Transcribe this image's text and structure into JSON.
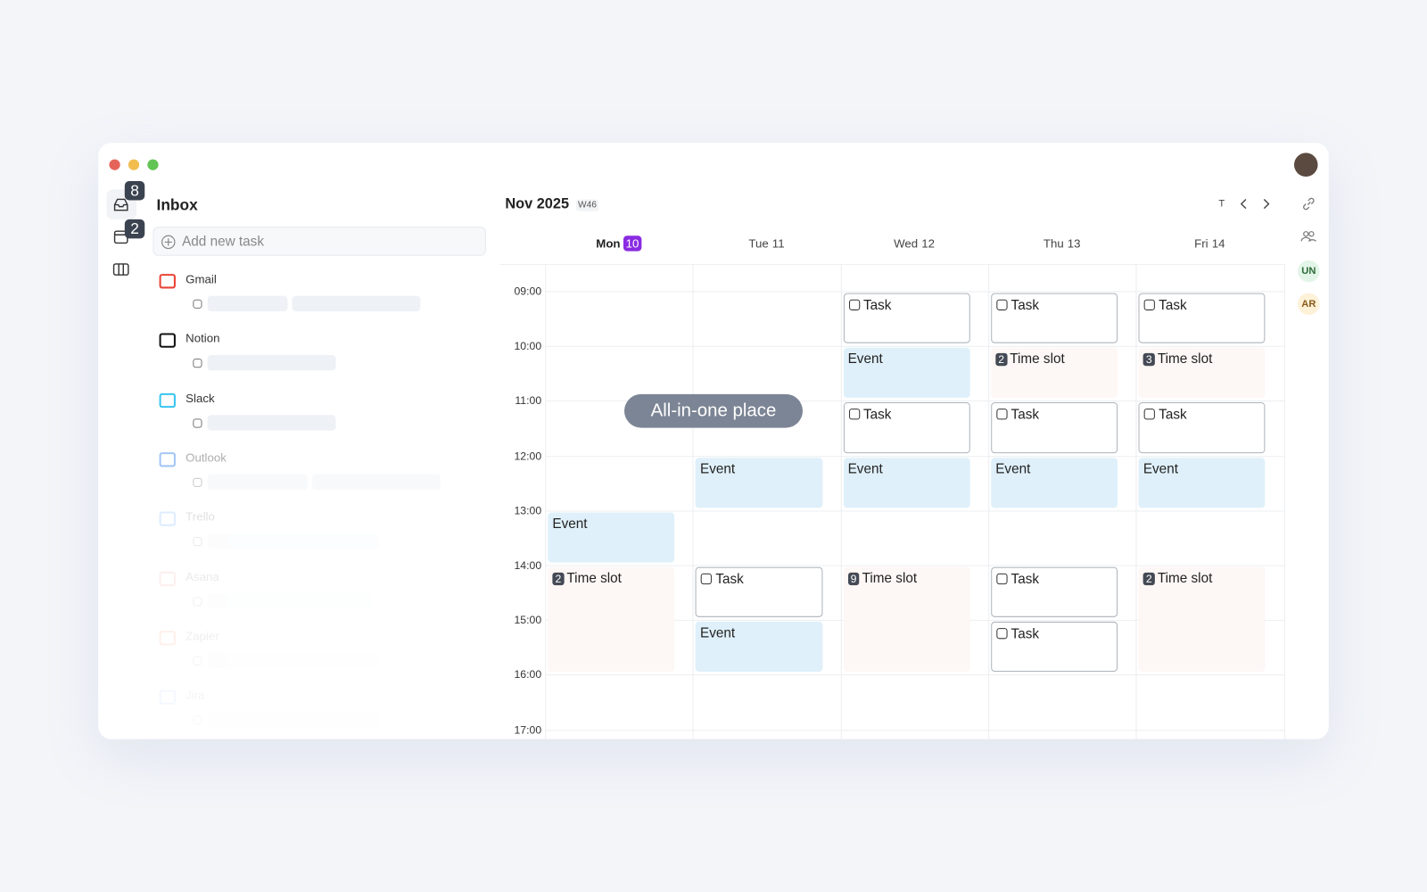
{
  "sidebar": {
    "badges": [
      "8",
      "2"
    ]
  },
  "inbox": {
    "title": "Inbox",
    "add_task": "Add new task",
    "sources": [
      "Gmail",
      "Notion",
      "Slack",
      "Outlook",
      "Trello",
      "Asana",
      "Zapier",
      "Jira"
    ]
  },
  "calendar": {
    "month": "Nov 2025",
    "week": "W46",
    "today": "T",
    "hours": [
      "09:00",
      "10:00",
      "11:00",
      "12:00",
      "13:00",
      "14:00",
      "15:00",
      "16:00",
      "17:00"
    ],
    "days": [
      {
        "name": "Mon",
        "date": "10",
        "items": [
          {
            "kind": "event",
            "label": "Event"
          },
          {
            "kind": "slot",
            "count": "2",
            "label": "Time slot"
          }
        ]
      },
      {
        "name": "Tue",
        "date": "11",
        "items": [
          {
            "kind": "event",
            "label": "Event"
          },
          {
            "kind": "task",
            "label": "Task"
          },
          {
            "kind": "event",
            "label": "Event"
          }
        ]
      },
      {
        "name": "Wed",
        "date": "12",
        "items": [
          {
            "kind": "task",
            "label": "Task"
          },
          {
            "kind": "event",
            "label": "Event"
          },
          {
            "kind": "task",
            "label": "Task"
          },
          {
            "kind": "event",
            "label": "Event"
          },
          {
            "kind": "slot",
            "count": "9",
            "label": "Time slot"
          }
        ]
      },
      {
        "name": "Thu",
        "date": "13",
        "items": [
          {
            "kind": "task",
            "label": "Task"
          },
          {
            "kind": "slot",
            "count": "2",
            "label": "Time slot"
          },
          {
            "kind": "task",
            "label": "Task"
          },
          {
            "kind": "event",
            "label": "Event"
          },
          {
            "kind": "task",
            "label": "Task"
          },
          {
            "kind": "task",
            "label": "Task"
          }
        ]
      },
      {
        "name": "Fri",
        "date": "14",
        "items": [
          {
            "kind": "task",
            "label": "Task"
          },
          {
            "kind": "slot",
            "count": "3",
            "label": "Time slot"
          },
          {
            "kind": "task",
            "label": "Task"
          },
          {
            "kind": "event",
            "label": "Event"
          },
          {
            "kind": "slot",
            "count": "2",
            "label": "Time slot"
          }
        ]
      }
    ]
  },
  "overlay": "All-in-one place",
  "rail": {
    "avatars": [
      "UN",
      "AR"
    ]
  }
}
